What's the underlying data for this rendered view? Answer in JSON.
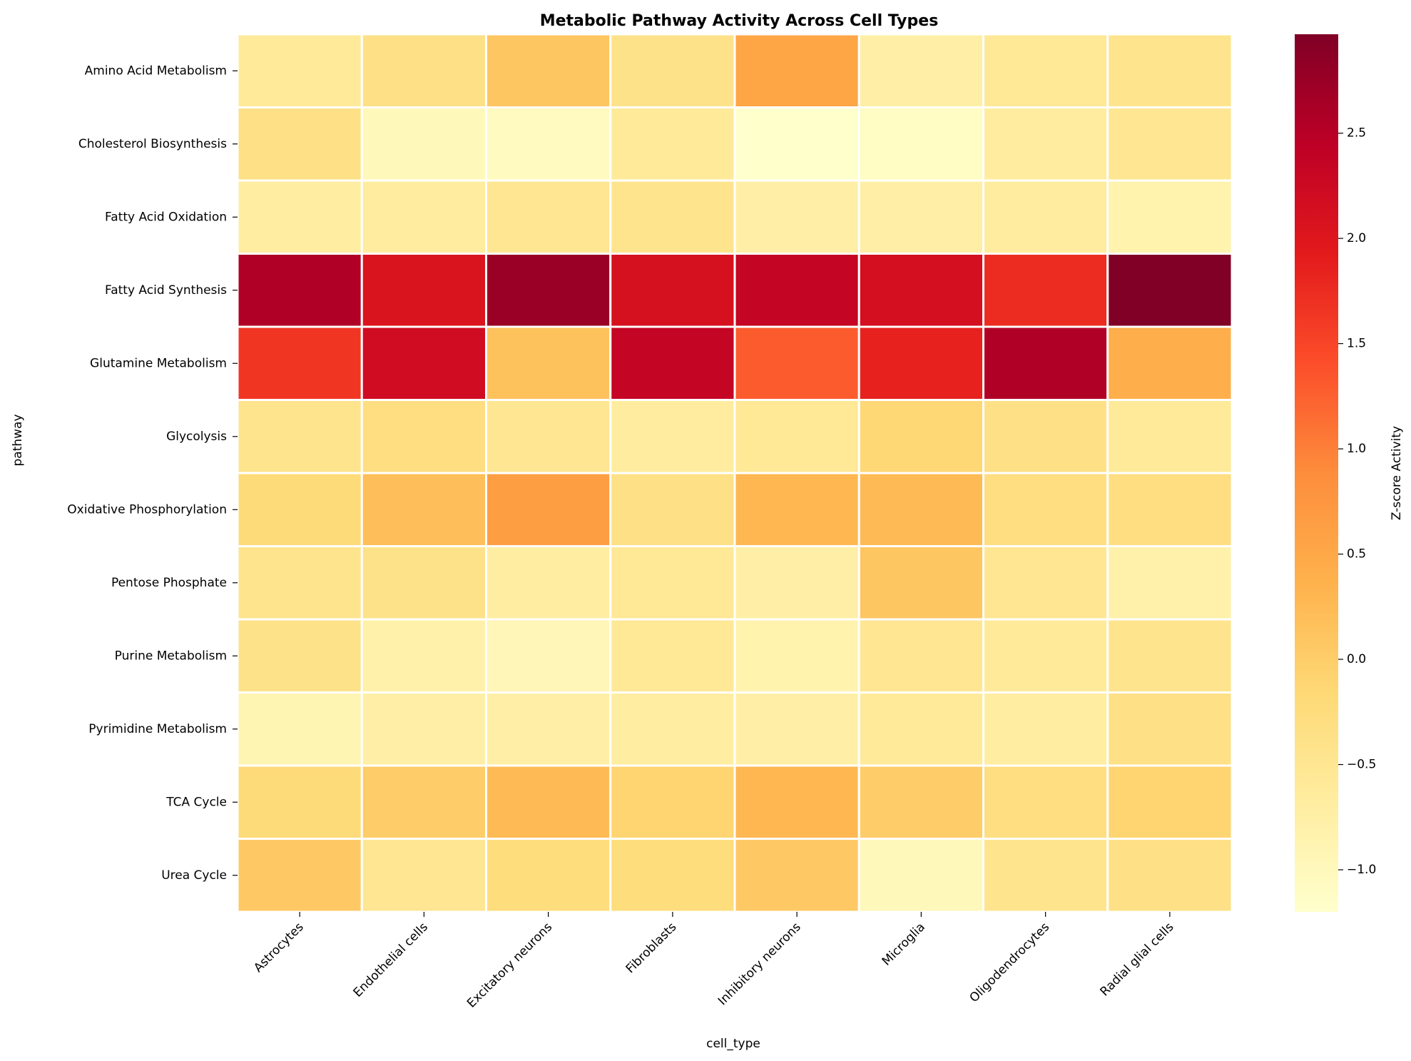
{
  "chart_data": {
    "type": "heatmap",
    "title": "Metabolic Pathway Activity Across Cell Types",
    "xlabel": "cell_type",
    "ylabel": "pathway",
    "colorbar_label": "Z-score Activity",
    "colormap": "YlOrRd",
    "color_range": [
      -1.2,
      2.97
    ],
    "colorbar_ticks": [
      -1.0,
      -0.5,
      0.0,
      0.5,
      1.0,
      1.5,
      2.0,
      2.5
    ],
    "colorbar_tick_labels": [
      "−1.0",
      "−0.5",
      "0.0",
      "0.5",
      "1.0",
      "1.5",
      "2.0",
      "2.5"
    ],
    "x_categories": [
      "Astrocytes",
      "Endothelial cells",
      "Excitatory neurons",
      "Fibroblasts",
      "Inhibitory neurons",
      "Microglia",
      "Oligodendrocytes",
      "Radial glial cells"
    ],
    "y_categories": [
      "Amino Acid Metabolism",
      "Cholesterol Biosynthesis",
      "Fatty Acid Oxidation",
      "Fatty Acid Synthesis",
      "Glutamine Metabolism",
      "Glycolysis",
      "Oxidative Phosphorylation",
      "Pentose Phosphate",
      "Purine Metabolism",
      "Pyrimidine Metabolism",
      "TCA Cycle",
      "Urea Cycle"
    ],
    "values": [
      [
        -0.6,
        -0.35,
        0.1,
        -0.4,
        0.55,
        -0.75,
        -0.55,
        -0.45
      ],
      [
        -0.35,
        -1.0,
        -1.05,
        -0.6,
        -1.2,
        -1.1,
        -0.65,
        -0.5
      ],
      [
        -0.7,
        -0.65,
        -0.5,
        -0.45,
        -0.75,
        -0.75,
        -0.65,
        -0.85
      ],
      [
        2.55,
        2.05,
        2.75,
        2.1,
        2.35,
        2.15,
        1.75,
        2.97
      ],
      [
        1.65,
        2.2,
        0.15,
        2.35,
        1.3,
        1.85,
        2.55,
        0.4
      ],
      [
        -0.45,
        -0.3,
        -0.5,
        -0.65,
        -0.55,
        -0.15,
        -0.35,
        -0.6
      ],
      [
        -0.2,
        0.2,
        0.65,
        -0.35,
        0.3,
        0.25,
        -0.3,
        -0.3
      ],
      [
        -0.45,
        -0.4,
        -0.7,
        -0.55,
        -0.75,
        0.1,
        -0.5,
        -0.8
      ],
      [
        -0.4,
        -0.8,
        -0.95,
        -0.55,
        -0.85,
        -0.5,
        -0.6,
        -0.45
      ],
      [
        -0.9,
        -0.75,
        -0.75,
        -0.7,
        -0.75,
        -0.6,
        -0.7,
        -0.35
      ],
      [
        -0.2,
        0.0,
        0.25,
        -0.1,
        0.3,
        0.0,
        -0.3,
        -0.1
      ],
      [
        0.05,
        -0.5,
        -0.25,
        -0.25,
        0.05,
        -1.0,
        -0.45,
        -0.35
      ]
    ]
  }
}
